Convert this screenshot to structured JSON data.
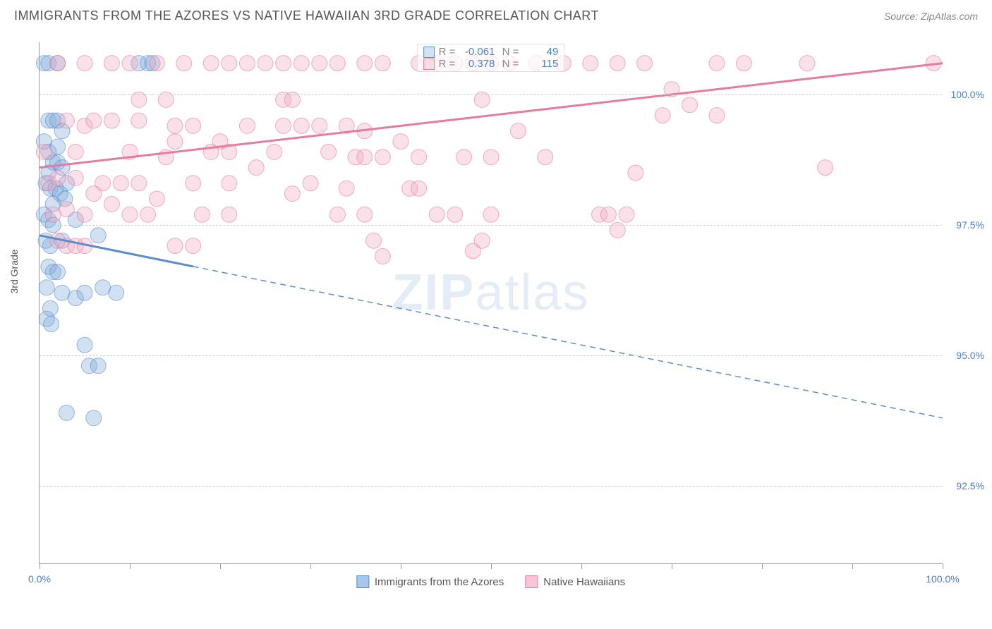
{
  "title": "IMMIGRANTS FROM THE AZORES VS NATIVE HAWAIIAN 3RD GRADE CORRELATION CHART",
  "source": "Source: ZipAtlas.com",
  "ylabel": "3rd Grade",
  "watermark": "ZIPatlas",
  "chart": {
    "type": "scatter",
    "background_color": "#ffffff",
    "grid_color": "#cccccc",
    "axis_color": "#999999",
    "xlim": [
      0,
      100
    ],
    "ylim": [
      91.0,
      101.0
    ],
    "xticks": [
      0,
      10,
      20,
      30,
      40,
      50,
      60,
      70,
      80,
      90,
      100
    ],
    "yticks": [
      92.5,
      95.0,
      97.5,
      100.0
    ],
    "ytick_labels": [
      "92.5%",
      "95.0%",
      "97.5%",
      "100.0%"
    ],
    "xtick_labels_shown": {
      "0": "0.0%",
      "100": "100.0%"
    },
    "marker_radius": 11,
    "marker_opacity": 0.35,
    "series": [
      {
        "name": "Immigrants from the Azores",
        "color_fill": "#7fa8d9",
        "color_stroke": "#5a8dc9",
        "r_value": "-0.061",
        "n_value": "49",
        "trend": {
          "x1": 0,
          "y1": 97.3,
          "x2": 100,
          "y2": 93.8,
          "solid_until_x": 17
        },
        "points": [
          [
            0.5,
            100.6
          ],
          [
            1.0,
            100.6
          ],
          [
            2.0,
            100.6
          ],
          [
            11.0,
            100.6
          ],
          [
            12.0,
            100.6
          ],
          [
            12.5,
            100.6
          ],
          [
            1.0,
            99.5
          ],
          [
            1.5,
            99.5
          ],
          [
            2.0,
            99.5
          ],
          [
            2.5,
            99.3
          ],
          [
            1.0,
            98.9
          ],
          [
            1.5,
            98.7
          ],
          [
            2.0,
            98.7
          ],
          [
            2.5,
            98.6
          ],
          [
            0.7,
            98.3
          ],
          [
            1.2,
            98.2
          ],
          [
            1.8,
            98.2
          ],
          [
            2.3,
            98.1
          ],
          [
            2.8,
            98.0
          ],
          [
            0.5,
            97.7
          ],
          [
            1.0,
            97.6
          ],
          [
            1.5,
            97.5
          ],
          [
            4.0,
            97.6
          ],
          [
            0.7,
            97.2
          ],
          [
            1.2,
            97.1
          ],
          [
            2.5,
            97.2
          ],
          [
            6.5,
            97.3
          ],
          [
            1.0,
            96.7
          ],
          [
            1.5,
            96.6
          ],
          [
            2.0,
            96.6
          ],
          [
            2.5,
            96.2
          ],
          [
            4.0,
            96.1
          ],
          [
            5.0,
            96.2
          ],
          [
            7.0,
            96.3
          ],
          [
            8.5,
            96.2
          ],
          [
            0.8,
            95.7
          ],
          [
            1.3,
            95.6
          ],
          [
            5.0,
            95.2
          ],
          [
            5.5,
            94.8
          ],
          [
            6.5,
            94.8
          ],
          [
            3.0,
            93.9
          ],
          [
            6.0,
            93.8
          ],
          [
            0.5,
            99.1
          ],
          [
            1.0,
            98.5
          ],
          [
            1.5,
            97.9
          ],
          [
            0.8,
            96.3
          ],
          [
            1.2,
            95.9
          ],
          [
            2.0,
            99.0
          ],
          [
            3.0,
            98.3
          ]
        ]
      },
      {
        "name": "Native Hawaiians",
        "color_fill": "#f2a6bd",
        "color_stroke": "#e67ba2",
        "r_value": "0.378",
        "n_value": "115",
        "trend": {
          "x1": 0,
          "y1": 98.6,
          "x2": 100,
          "y2": 100.6,
          "solid_until_x": 100
        },
        "points": [
          [
            2,
            100.6
          ],
          [
            5,
            100.6
          ],
          [
            8,
            100.6
          ],
          [
            10,
            100.6
          ],
          [
            13,
            100.6
          ],
          [
            16,
            100.6
          ],
          [
            19,
            100.6
          ],
          [
            21,
            100.6
          ],
          [
            23,
            100.6
          ],
          [
            25,
            100.6
          ],
          [
            27,
            100.6
          ],
          [
            29,
            100.6
          ],
          [
            31,
            100.6
          ],
          [
            33,
            100.6
          ],
          [
            36,
            100.6
          ],
          [
            38,
            100.6
          ],
          [
            42,
            100.6
          ],
          [
            44,
            100.6
          ],
          [
            46,
            100.6
          ],
          [
            48,
            100.6
          ],
          [
            50,
            100.6
          ],
          [
            52,
            100.6
          ],
          [
            55,
            100.6
          ],
          [
            58,
            100.6
          ],
          [
            61,
            100.6
          ],
          [
            64,
            100.6
          ],
          [
            67,
            100.6
          ],
          [
            75,
            100.6
          ],
          [
            78,
            100.6
          ],
          [
            85,
            100.6
          ],
          [
            99,
            100.6
          ],
          [
            11,
            99.9
          ],
          [
            14,
            99.9
          ],
          [
            27,
            99.9
          ],
          [
            28,
            99.9
          ],
          [
            49,
            99.9
          ],
          [
            3,
            99.5
          ],
          [
            5,
            99.4
          ],
          [
            6,
            99.5
          ],
          [
            8,
            99.5
          ],
          [
            11,
            99.5
          ],
          [
            15,
            99.4
          ],
          [
            17,
            99.4
          ],
          [
            23,
            99.4
          ],
          [
            27,
            99.4
          ],
          [
            29,
            99.4
          ],
          [
            31,
            99.4
          ],
          [
            34,
            99.4
          ],
          [
            36,
            99.3
          ],
          [
            69,
            99.6
          ],
          [
            75,
            99.6
          ],
          [
            4,
            98.9
          ],
          [
            10,
            98.9
          ],
          [
            14,
            98.8
          ],
          [
            19,
            98.9
          ],
          [
            21,
            98.9
          ],
          [
            26,
            98.9
          ],
          [
            32,
            98.9
          ],
          [
            35,
            98.8
          ],
          [
            36,
            98.8
          ],
          [
            38,
            98.8
          ],
          [
            42,
            98.8
          ],
          [
            47,
            98.8
          ],
          [
            50,
            98.8
          ],
          [
            56,
            98.8
          ],
          [
            2,
            98.4
          ],
          [
            4,
            98.4
          ],
          [
            7,
            98.3
          ],
          [
            9,
            98.3
          ],
          [
            11,
            98.3
          ],
          [
            17,
            98.3
          ],
          [
            21,
            98.3
          ],
          [
            30,
            98.3
          ],
          [
            34,
            98.2
          ],
          [
            41,
            98.2
          ],
          [
            42,
            98.2
          ],
          [
            66,
            98.5
          ],
          [
            87,
            98.6
          ],
          [
            3,
            97.8
          ],
          [
            5,
            97.7
          ],
          [
            10,
            97.7
          ],
          [
            12,
            97.7
          ],
          [
            18,
            97.7
          ],
          [
            21,
            97.7
          ],
          [
            33,
            97.7
          ],
          [
            36,
            97.7
          ],
          [
            44,
            97.7
          ],
          [
            46,
            97.7
          ],
          [
            50,
            97.7
          ],
          [
            62,
            97.7
          ],
          [
            63,
            97.7
          ],
          [
            65,
            97.7
          ],
          [
            3,
            97.1
          ],
          [
            4,
            97.1
          ],
          [
            5,
            97.1
          ],
          [
            15,
            97.1
          ],
          [
            17,
            97.1
          ],
          [
            37,
            97.2
          ],
          [
            49,
            97.2
          ],
          [
            64,
            97.4
          ],
          [
            38,
            96.9
          ],
          [
            48,
            97.0
          ],
          [
            0.5,
            98.9
          ],
          [
            1.0,
            98.3
          ],
          [
            1.5,
            97.7
          ],
          [
            2.0,
            97.2
          ],
          [
            15,
            99.1
          ],
          [
            20,
            99.1
          ],
          [
            6,
            98.1
          ],
          [
            8,
            97.9
          ],
          [
            13,
            98.0
          ],
          [
            24,
            98.6
          ],
          [
            28,
            98.1
          ],
          [
            40,
            99.1
          ],
          [
            53,
            99.3
          ],
          [
            70,
            100.1
          ],
          [
            72,
            99.8
          ]
        ]
      }
    ]
  },
  "bottom_legend": [
    {
      "label": "Immigrants from the Azores",
      "fill": "#a9c5e8",
      "stroke": "#5a8dc9"
    },
    {
      "label": "Native Hawaiians",
      "fill": "#f7c5d4",
      "stroke": "#e67ba2"
    }
  ]
}
